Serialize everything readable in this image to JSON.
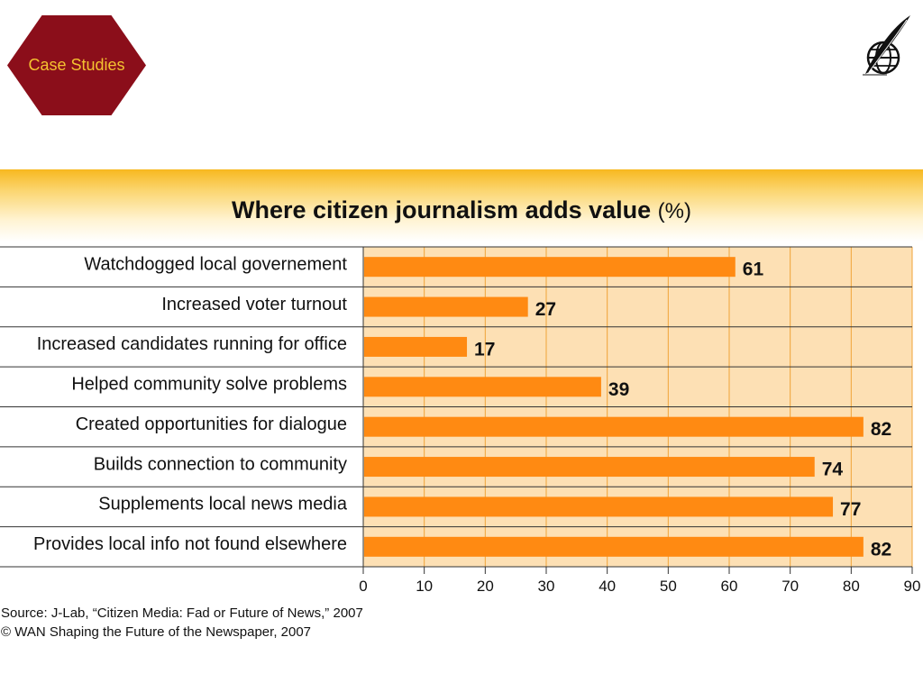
{
  "badge": {
    "label": "Case Studies"
  },
  "logo": {
    "icon": "globe-quill-icon"
  },
  "colors": {
    "bar": "#ff8a12",
    "plot_bg": "#fde0b4",
    "grid": "#f0a338",
    "badge": "#8b0e1a",
    "badge_text": "#f4c230"
  },
  "chart_data": {
    "type": "bar",
    "orientation": "horizontal",
    "title": "Where citizen journalism adds value",
    "title_unit": "(%)",
    "categories": [
      "Watchdogged local governement",
      "Increased voter turnout",
      "Increased candidates running for office",
      "Helped community solve problems",
      "Created opportunities for dialogue",
      "Builds connection to community",
      "Supplements local news media",
      "Provides local info not found elsewhere"
    ],
    "values": [
      61,
      27,
      17,
      39,
      82,
      74,
      77,
      82
    ],
    "value_labels": [
      "61",
      "27",
      "17",
      "39",
      "82",
      "74",
      "77",
      "82"
    ],
    "xlim": [
      0,
      90
    ],
    "xticks": [
      0,
      10,
      20,
      30,
      40,
      50,
      60,
      70,
      80,
      90
    ],
    "xtick_labels": [
      "0",
      "10",
      "20",
      "30",
      "40",
      "50",
      "60",
      "70",
      "80",
      "90"
    ],
    "grid": true
  },
  "footer": {
    "source": "Source: J-Lab, “Citizen Media: Fad or Future of News,” 2007",
    "copyright": "© WAN Shaping the Future of the Newspaper, 2007"
  }
}
